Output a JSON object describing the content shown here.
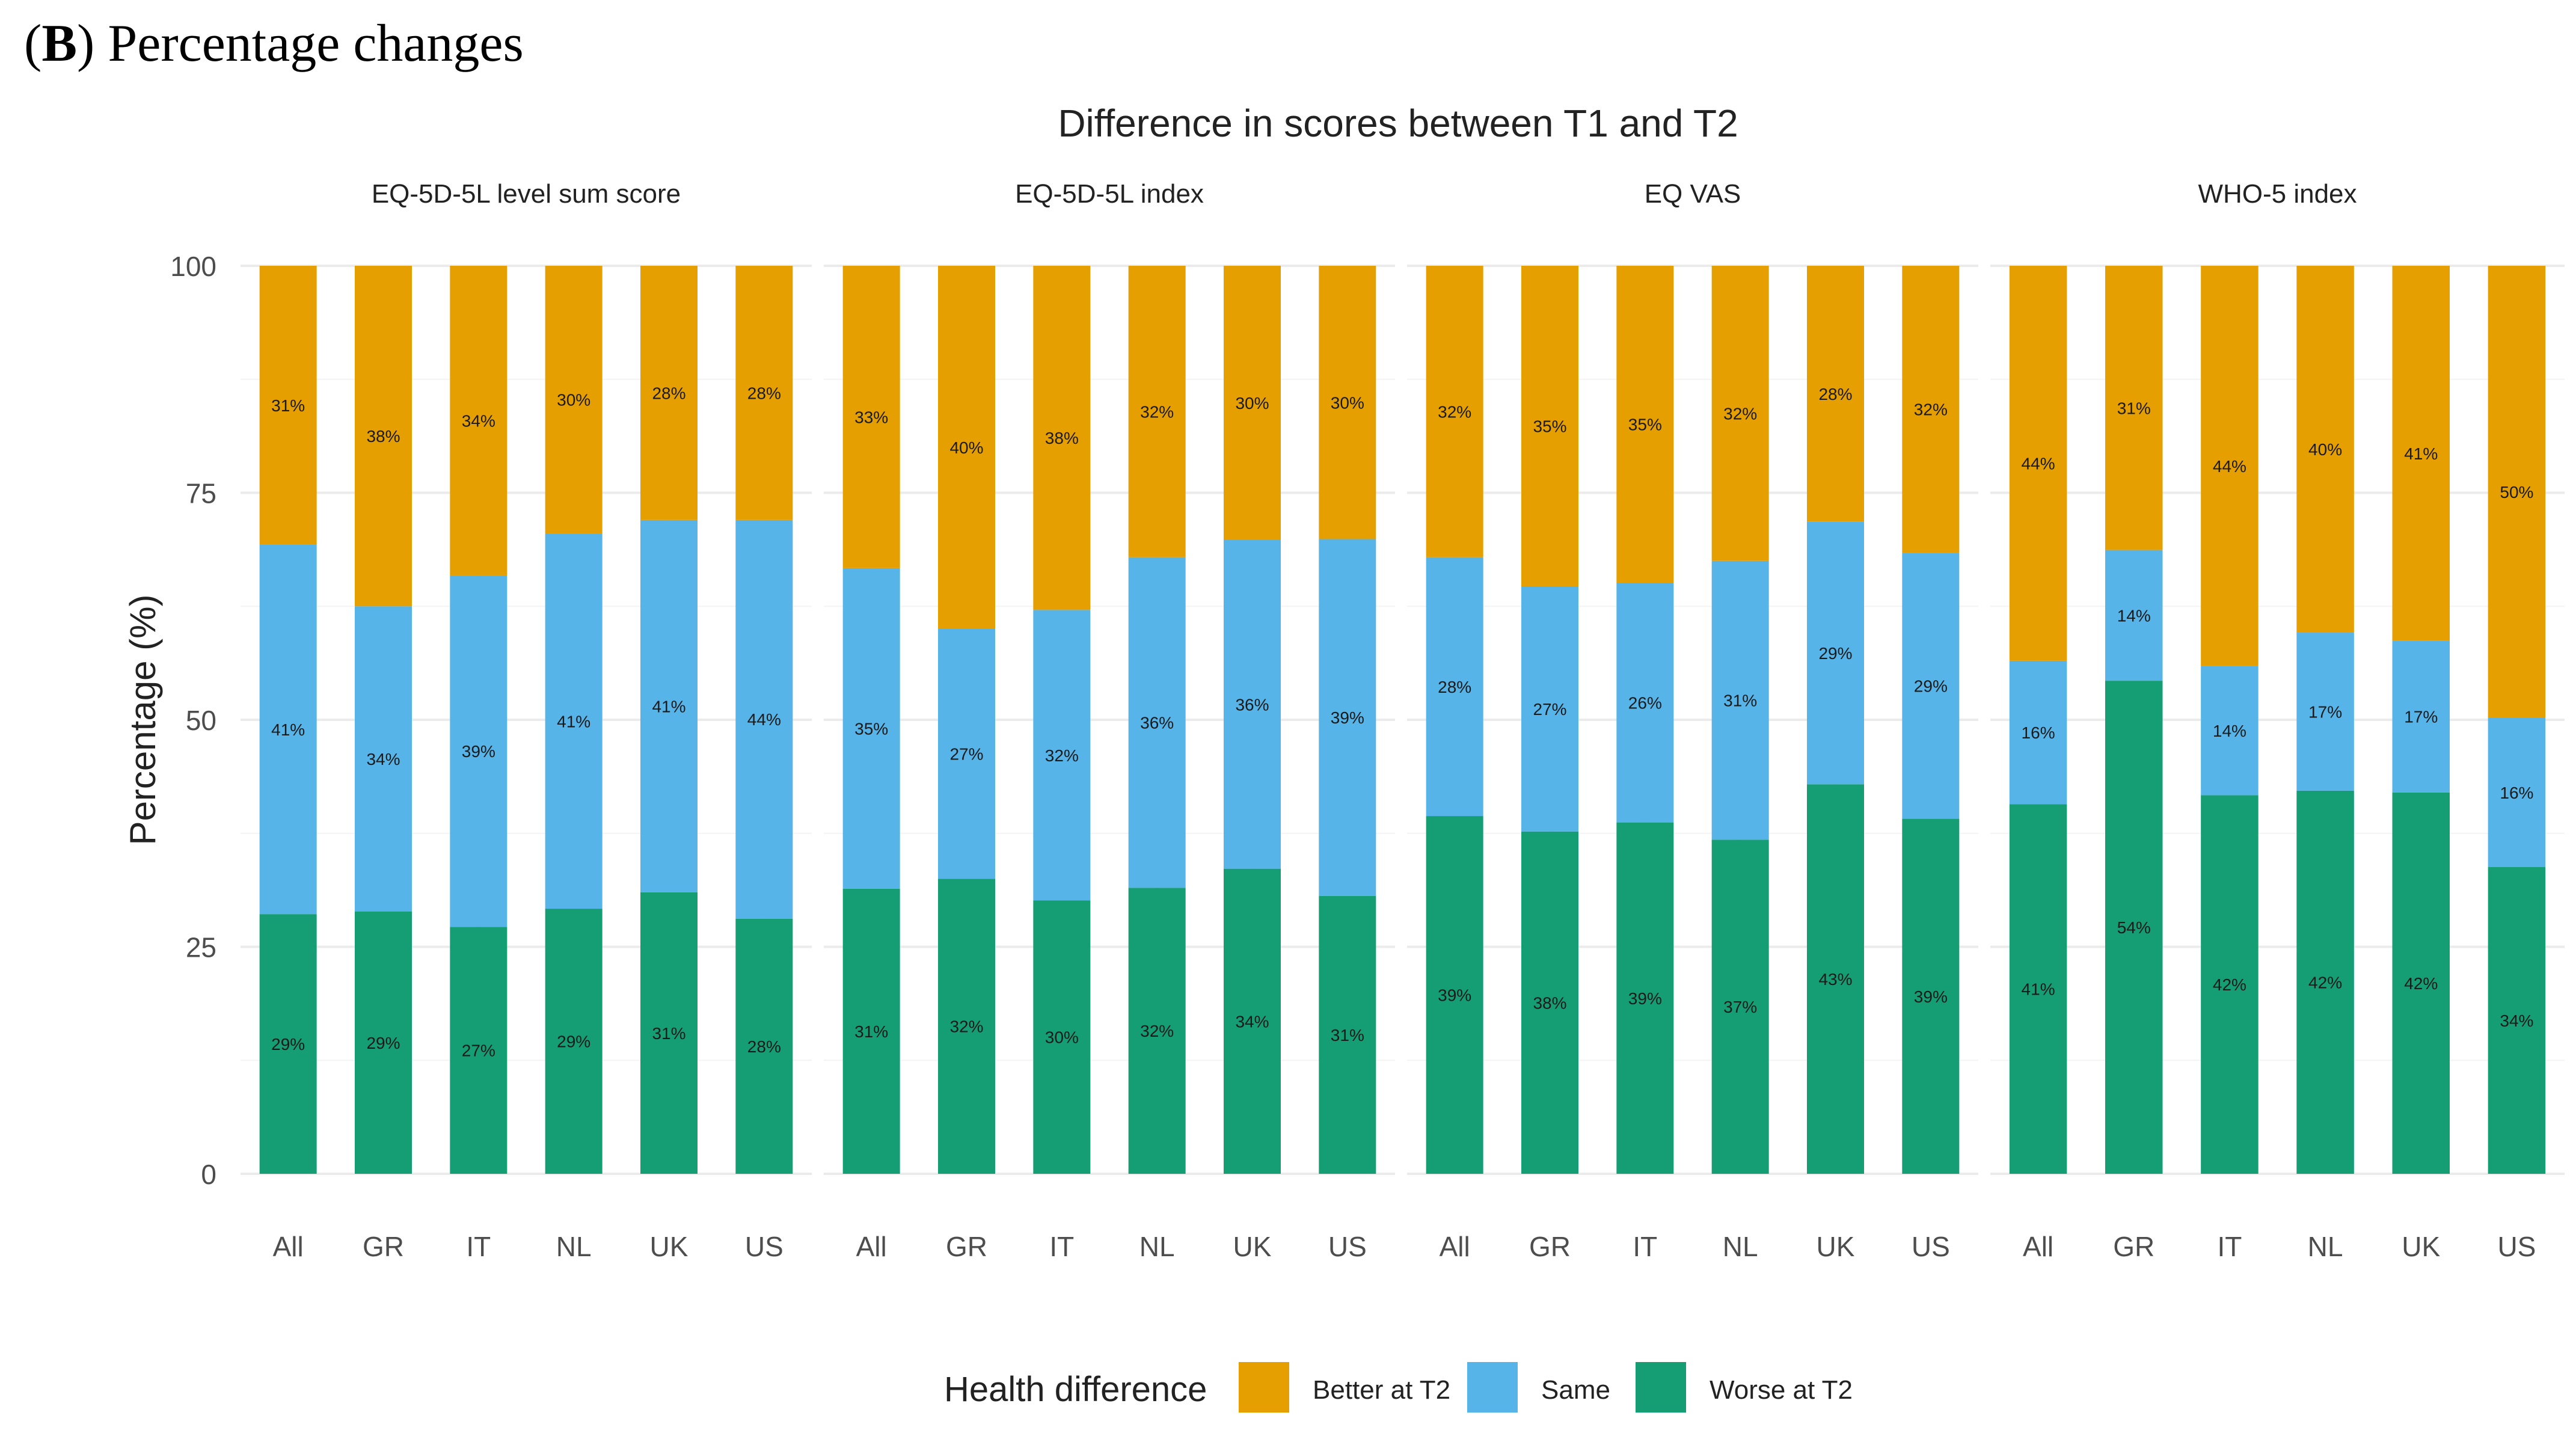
{
  "panel": {
    "open": "(",
    "letter": "B",
    "close": ")",
    "label": " Percentage changes"
  },
  "colors": {
    "better": "#E69F00",
    "same": "#56B4E9",
    "worse": "#159E74",
    "grid": "#EBEBEB",
    "text": "#4D4D4D"
  },
  "chart_data": {
    "type": "bar",
    "stacked": true,
    "title": "Difference in scores between T1 and T2",
    "ylabel": "Percentage (%)",
    "xlabel": "",
    "ylim": [
      0,
      100
    ],
    "yticks": [
      "0",
      "25",
      "50",
      "75",
      "100"
    ],
    "categories": [
      "All",
      "GR",
      "IT",
      "NL",
      "UK",
      "US"
    ],
    "legend": {
      "title": "Health difference",
      "position": "bottom",
      "items": [
        "Better at T2",
        "Same",
        "Worse at T2"
      ]
    },
    "facets": [
      {
        "name": "EQ-5D-5L level sum score",
        "series": [
          {
            "name": "Worse at T2",
            "values": [
              28.6,
              28.9,
              27.2,
              29.2,
              31.0,
              28.1
            ],
            "labels": [
              "29%",
              "29%",
              "27%",
              "29%",
              "31%",
              "28%"
            ]
          },
          {
            "name": "Same",
            "values": [
              40.7,
              33.6,
              38.7,
              41.3,
              41.0,
              43.9
            ],
            "labels": [
              "41%",
              "34%",
              "39%",
              "41%",
              "41%",
              "44%"
            ]
          },
          {
            "name": "Better at T2",
            "values": [
              30.7,
              37.5,
              34.1,
              29.5,
              28.0,
              28.0
            ],
            "labels": [
              "31%",
              "38%",
              "34%",
              "30%",
              "28%",
              "28%"
            ]
          }
        ]
      },
      {
        "name": "EQ-5D-5L index",
        "series": [
          {
            "name": "Worse at T2",
            "values": [
              31.4,
              32.5,
              30.1,
              31.5,
              33.6,
              30.6
            ],
            "labels": [
              "31%",
              "32%",
              "30%",
              "32%",
              "34%",
              "31%"
            ]
          },
          {
            "name": "Same",
            "values": [
              35.3,
              27.5,
              32.0,
              36.4,
              36.2,
              39.3
            ],
            "labels": [
              "35%",
              "27%",
              "32%",
              "36%",
              "36%",
              "39%"
            ]
          },
          {
            "name": "Better at T2",
            "values": [
              33.3,
              40.0,
              37.9,
              32.1,
              30.2,
              30.1
            ],
            "labels": [
              "33%",
              "40%",
              "38%",
              "32%",
              "30%",
              "30%"
            ]
          }
        ]
      },
      {
        "name": "EQ VAS",
        "series": [
          {
            "name": "Worse at T2",
            "values": [
              39.4,
              37.7,
              38.7,
              36.8,
              42.9,
              39.1
            ],
            "labels": [
              "39%",
              "38%",
              "39%",
              "37%",
              "43%",
              "39%"
            ]
          },
          {
            "name": "Same",
            "values": [
              28.5,
              27.0,
              26.4,
              30.7,
              28.9,
              29.3
            ],
            "labels": [
              "28%",
              "27%",
              "26%",
              "31%",
              "29%",
              "29%"
            ]
          },
          {
            "name": "Better at T2",
            "values": [
              32.1,
              35.3,
              34.9,
              32.5,
              28.2,
              31.6
            ],
            "labels": [
              "32%",
              "35%",
              "35%",
              "32%",
              "28%",
              "32%"
            ]
          }
        ]
      },
      {
        "name": "WHO-5 index",
        "series": [
          {
            "name": "Worse at T2",
            "values": [
              40.7,
              54.3,
              41.7,
              42.2,
              42.0,
              33.8
            ],
            "labels": [
              "41%",
              "54%",
              "42%",
              "42%",
              "42%",
              "34%"
            ]
          },
          {
            "name": "Same",
            "values": [
              15.8,
              14.4,
              14.2,
              17.4,
              16.7,
              16.4
            ],
            "labels": [
              "16%",
              "14%",
              "14%",
              "17%",
              "17%",
              "16%"
            ]
          },
          {
            "name": "Better at T2",
            "values": [
              43.5,
              31.3,
              44.1,
              40.4,
              41.3,
              49.8
            ],
            "labels": [
              "44%",
              "31%",
              "44%",
              "40%",
              "41%",
              "50%"
            ]
          }
        ]
      }
    ]
  }
}
